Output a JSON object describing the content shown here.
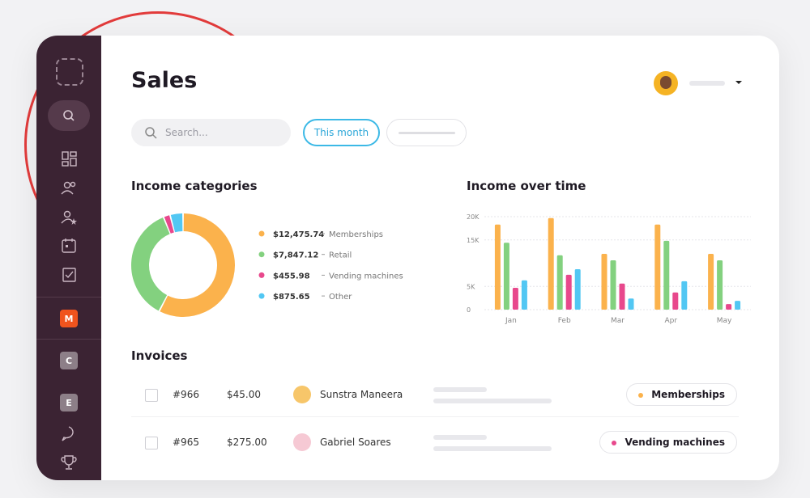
{
  "header": {
    "title": "Sales"
  },
  "search": {
    "placeholder": "Search..."
  },
  "filter": {
    "active": "This month"
  },
  "sidebar": {
    "workspaces": [
      "M",
      "C",
      "E"
    ]
  },
  "chart_data": [
    {
      "type": "pie",
      "title": "Income categories",
      "categories": [
        "Memberships",
        "Retail",
        "Vending machines",
        "Other"
      ],
      "values": [
        12475.74,
        7847.12,
        455.98,
        875.65
      ],
      "value_labels": [
        "$12,475.74",
        "$7,847.12",
        "$455.98",
        "$875.65"
      ],
      "colors": [
        "#fbb24c",
        "#83d17f",
        "#e8488c",
        "#52c7f3"
      ],
      "donut": true
    },
    {
      "type": "bar",
      "title": "Income over time",
      "categories": [
        "Jan",
        "Feb",
        "Mar",
        "Apr",
        "May"
      ],
      "series": [
        {
          "color": "#fbb24c",
          "values": [
            18300,
            19700,
            12000,
            18300,
            12000
          ]
        },
        {
          "color": "#83d17f",
          "values": [
            14400,
            11700,
            10600,
            14800,
            10600
          ]
        },
        {
          "color": "#e8488c",
          "values": [
            4700,
            7500,
            5600,
            3700,
            1200
          ]
        },
        {
          "color": "#52c7f3",
          "values": [
            6300,
            8700,
            2400,
            6100,
            1900
          ]
        }
      ],
      "ylim": [
        0,
        20000
      ],
      "yticks": [
        0,
        {
          "value": 5000,
          "label": "5K"
        },
        {
          "value": 15000,
          "label": "15K"
        },
        {
          "value": 20000,
          "label": "20K"
        }
      ],
      "grid": true
    }
  ],
  "invoices": {
    "title": "Invoices",
    "rows": [
      [
        "#966",
        "$45.00",
        "Sunstra Maneera",
        "Memberships"
      ],
      [
        "#965",
        "$275.00",
        "Gabriel Soares",
        "Vending machines"
      ]
    ]
  }
}
